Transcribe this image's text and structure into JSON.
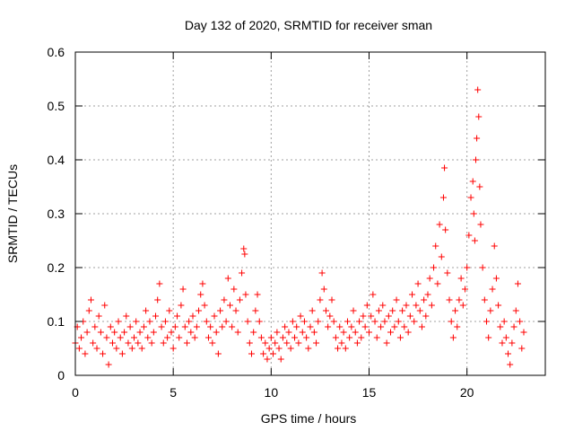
{
  "chart_data": {
    "type": "scatter",
    "title": "Day 132 of 2020, SRMTID for receiver sman",
    "xlabel": "GPS time / hours",
    "ylabel": "SRMTID / TECUs",
    "xlim": [
      0,
      24
    ],
    "ylim": [
      0,
      0.6
    ],
    "xticks": [
      0,
      5,
      10,
      15,
      20
    ],
    "yticks": [
      0,
      0.1,
      0.2,
      0.3,
      0.4,
      0.5,
      0.6
    ],
    "xtick_labels": [
      "0",
      "5",
      "10",
      "15",
      "20"
    ],
    "ytick_labels": [
      "0",
      "0.1",
      "0.2",
      "0.3",
      "0.4",
      "0.5",
      "0.6"
    ],
    "grid": true,
    "marker": "+",
    "color": "#ff0000",
    "series": [
      {
        "name": "SRMTID",
        "points": [
          [
            0.0,
            0.06
          ],
          [
            0.1,
            0.09
          ],
          [
            0.2,
            0.05
          ],
          [
            0.3,
            0.07
          ],
          [
            0.4,
            0.1
          ],
          [
            0.5,
            0.04
          ],
          [
            0.6,
            0.08
          ],
          [
            0.7,
            0.12
          ],
          [
            0.8,
            0.14
          ],
          [
            0.9,
            0.06
          ],
          [
            1.0,
            0.09
          ],
          [
            1.1,
            0.05
          ],
          [
            1.2,
            0.11
          ],
          [
            1.3,
            0.08
          ],
          [
            1.4,
            0.04
          ],
          [
            1.5,
            0.13
          ],
          [
            1.6,
            0.07
          ],
          [
            1.7,
            0.02
          ],
          [
            1.8,
            0.09
          ],
          [
            1.9,
            0.06
          ],
          [
            2.0,
            0.08
          ],
          [
            2.1,
            0.05
          ],
          [
            2.2,
            0.1
          ],
          [
            2.3,
            0.07
          ],
          [
            2.4,
            0.04
          ],
          [
            2.5,
            0.08
          ],
          [
            2.6,
            0.11
          ],
          [
            2.7,
            0.06
          ],
          [
            2.8,
            0.09
          ],
          [
            2.9,
            0.05
          ],
          [
            3.0,
            0.07
          ],
          [
            3.1,
            0.1
          ],
          [
            3.2,
            0.06
          ],
          [
            3.3,
            0.08
          ],
          [
            3.4,
            0.05
          ],
          [
            3.5,
            0.09
          ],
          [
            3.6,
            0.12
          ],
          [
            3.7,
            0.07
          ],
          [
            3.8,
            0.1
          ],
          [
            3.9,
            0.06
          ],
          [
            4.0,
            0.08
          ],
          [
            4.1,
            0.11
          ],
          [
            4.2,
            0.14
          ],
          [
            4.3,
            0.17
          ],
          [
            4.4,
            0.09
          ],
          [
            4.5,
            0.06
          ],
          [
            4.6,
            0.1
          ],
          [
            4.7,
            0.07
          ],
          [
            4.8,
            0.12
          ],
          [
            4.9,
            0.08
          ],
          [
            5.0,
            0.05
          ],
          [
            5.1,
            0.09
          ],
          [
            5.2,
            0.11
          ],
          [
            5.3,
            0.07
          ],
          [
            5.4,
            0.13
          ],
          [
            5.5,
            0.16
          ],
          [
            5.6,
            0.09
          ],
          [
            5.7,
            0.06
          ],
          [
            5.8,
            0.1
          ],
          [
            5.9,
            0.08
          ],
          [
            6.0,
            0.11
          ],
          [
            6.1,
            0.07
          ],
          [
            6.2,
            0.09
          ],
          [
            6.3,
            0.12
          ],
          [
            6.4,
            0.15
          ],
          [
            6.5,
            0.17
          ],
          [
            6.6,
            0.13
          ],
          [
            6.7,
            0.1
          ],
          [
            6.8,
            0.07
          ],
          [
            6.9,
            0.09
          ],
          [
            7.0,
            0.06
          ],
          [
            7.1,
            0.11
          ],
          [
            7.2,
            0.08
          ],
          [
            7.3,
            0.04
          ],
          [
            7.4,
            0.12
          ],
          [
            7.5,
            0.09
          ],
          [
            7.6,
            0.14
          ],
          [
            7.7,
            0.1
          ],
          [
            7.8,
            0.18
          ],
          [
            7.9,
            0.13
          ],
          [
            8.0,
            0.09
          ],
          [
            8.1,
            0.16
          ],
          [
            8.2,
            0.12
          ],
          [
            8.3,
            0.08
          ],
          [
            8.4,
            0.14
          ],
          [
            8.5,
            0.19
          ],
          [
            8.6,
            0.235
          ],
          [
            8.65,
            0.225
          ],
          [
            8.7,
            0.15
          ],
          [
            8.8,
            0.1
          ],
          [
            8.9,
            0.06
          ],
          [
            9.0,
            0.04
          ],
          [
            9.1,
            0.08
          ],
          [
            9.2,
            0.12
          ],
          [
            9.3,
            0.15
          ],
          [
            9.4,
            0.1
          ],
          [
            9.5,
            0.07
          ],
          [
            9.6,
            0.04
          ],
          [
            9.7,
            0.06
          ],
          [
            9.8,
            0.03
          ],
          [
            9.9,
            0.05
          ],
          [
            10.0,
            0.07
          ],
          [
            10.1,
            0.04
          ],
          [
            10.2,
            0.06
          ],
          [
            10.3,
            0.08
          ],
          [
            10.4,
            0.05
          ],
          [
            10.5,
            0.03
          ],
          [
            10.6,
            0.07
          ],
          [
            10.7,
            0.09
          ],
          [
            10.8,
            0.06
          ],
          [
            10.9,
            0.08
          ],
          [
            11.0,
            0.05
          ],
          [
            11.1,
            0.1
          ],
          [
            11.2,
            0.07
          ],
          [
            11.3,
            0.09
          ],
          [
            11.4,
            0.06
          ],
          [
            11.5,
            0.11
          ],
          [
            11.6,
            0.08
          ],
          [
            11.7,
            0.1
          ],
          [
            11.8,
            0.07
          ],
          [
            11.9,
            0.05
          ],
          [
            12.0,
            0.09
          ],
          [
            12.1,
            0.12
          ],
          [
            12.2,
            0.08
          ],
          [
            12.3,
            0.06
          ],
          [
            12.4,
            0.1
          ],
          [
            12.5,
            0.14
          ],
          [
            12.6,
            0.19
          ],
          [
            12.7,
            0.16
          ],
          [
            12.8,
            0.12
          ],
          [
            12.9,
            0.09
          ],
          [
            13.0,
            0.11
          ],
          [
            13.1,
            0.14
          ],
          [
            13.2,
            0.1
          ],
          [
            13.3,
            0.07
          ],
          [
            13.4,
            0.05
          ],
          [
            13.5,
            0.09
          ],
          [
            13.6,
            0.06
          ],
          [
            13.7,
            0.08
          ],
          [
            13.8,
            0.05
          ],
          [
            13.9,
            0.1
          ],
          [
            14.0,
            0.07
          ],
          [
            14.1,
            0.09
          ],
          [
            14.2,
            0.12
          ],
          [
            14.3,
            0.08
          ],
          [
            14.4,
            0.06
          ],
          [
            14.5,
            0.1
          ],
          [
            14.6,
            0.07
          ],
          [
            14.7,
            0.11
          ],
          [
            14.8,
            0.09
          ],
          [
            14.9,
            0.13
          ],
          [
            15.0,
            0.08
          ],
          [
            15.1,
            0.11
          ],
          [
            15.2,
            0.15
          ],
          [
            15.3,
            0.1
          ],
          [
            15.4,
            0.07
          ],
          [
            15.5,
            0.12
          ],
          [
            15.6,
            0.09
          ],
          [
            15.7,
            0.13
          ],
          [
            15.8,
            0.1
          ],
          [
            15.9,
            0.06
          ],
          [
            16.0,
            0.11
          ],
          [
            16.1,
            0.08
          ],
          [
            16.2,
            0.12
          ],
          [
            16.3,
            0.09
          ],
          [
            16.4,
            0.14
          ],
          [
            16.5,
            0.1
          ],
          [
            16.6,
            0.07
          ],
          [
            16.7,
            0.12
          ],
          [
            16.8,
            0.09
          ],
          [
            16.9,
            0.13
          ],
          [
            17.0,
            0.08
          ],
          [
            17.1,
            0.11
          ],
          [
            17.2,
            0.15
          ],
          [
            17.3,
            0.1
          ],
          [
            17.4,
            0.13
          ],
          [
            17.5,
            0.17
          ],
          [
            17.6,
            0.12
          ],
          [
            17.7,
            0.09
          ],
          [
            17.8,
            0.14
          ],
          [
            17.9,
            0.11
          ],
          [
            18.0,
            0.15
          ],
          [
            18.1,
            0.18
          ],
          [
            18.2,
            0.13
          ],
          [
            18.3,
            0.2
          ],
          [
            18.4,
            0.24
          ],
          [
            18.5,
            0.17
          ],
          [
            18.6,
            0.28
          ],
          [
            18.7,
            0.22
          ],
          [
            18.8,
            0.33
          ],
          [
            18.85,
            0.385
          ],
          [
            18.9,
            0.27
          ],
          [
            19.0,
            0.19
          ],
          [
            19.1,
            0.14
          ],
          [
            19.2,
            0.1
          ],
          [
            19.3,
            0.07
          ],
          [
            19.4,
            0.12
          ],
          [
            19.5,
            0.09
          ],
          [
            19.6,
            0.14
          ],
          [
            19.7,
            0.18
          ],
          [
            19.8,
            0.13
          ],
          [
            19.9,
            0.16
          ],
          [
            20.0,
            0.2
          ],
          [
            20.1,
            0.26
          ],
          [
            20.2,
            0.33
          ],
          [
            20.3,
            0.36
          ],
          [
            20.35,
            0.3
          ],
          [
            20.4,
            0.25
          ],
          [
            20.45,
            0.4
          ],
          [
            20.5,
            0.44
          ],
          [
            20.55,
            0.53
          ],
          [
            20.6,
            0.48
          ],
          [
            20.65,
            0.35
          ],
          [
            20.7,
            0.28
          ],
          [
            20.8,
            0.2
          ],
          [
            20.9,
            0.14
          ],
          [
            21.0,
            0.1
          ],
          [
            21.1,
            0.07
          ],
          [
            21.2,
            0.12
          ],
          [
            21.3,
            0.16
          ],
          [
            21.4,
            0.24
          ],
          [
            21.5,
            0.18
          ],
          [
            21.6,
            0.13
          ],
          [
            21.7,
            0.09
          ],
          [
            21.8,
            0.06
          ],
          [
            21.9,
            0.1
          ],
          [
            22.0,
            0.07
          ],
          [
            22.1,
            0.04
          ],
          [
            22.2,
            0.02
          ],
          [
            22.3,
            0.06
          ],
          [
            22.4,
            0.09
          ],
          [
            22.5,
            0.12
          ],
          [
            22.6,
            0.17
          ],
          [
            22.7,
            0.1
          ],
          [
            22.8,
            0.05
          ],
          [
            22.9,
            0.08
          ]
        ]
      }
    ]
  }
}
